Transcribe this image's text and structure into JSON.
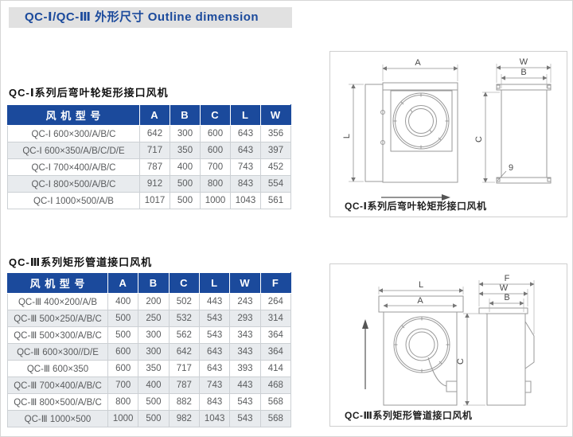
{
  "page": {
    "title": "QC-Ⅰ/QC-Ⅲ 外形尺寸 Outline dimension"
  },
  "colors": {
    "accent_blue": "#1b4a9c",
    "title_bar_bg": "#e1e1e1",
    "table_header_bg": "#1b4a9c",
    "alt_row_bg": "#e8ebee",
    "cell_text": "#5a5c5e"
  },
  "tables": [
    {
      "section_title": "QC-Ⅰ系列后弯叶轮矩形接口风机",
      "headers": [
        "风 机 型 号",
        "A",
        "B",
        "C",
        "L",
        "W"
      ],
      "rows": [
        [
          "QC-Ⅰ 600×300/A/B/C",
          "642",
          "300",
          "600",
          "643",
          "356"
        ],
        [
          "QC-Ⅰ 600×350/A/B/C/D/E",
          "717",
          "350",
          "600",
          "643",
          "397"
        ],
        [
          "QC-Ⅰ 700×400/A/B/C",
          "787",
          "400",
          "700",
          "743",
          "452"
        ],
        [
          "QC-Ⅰ 800×500/A/B/C",
          "912",
          "500",
          "800",
          "843",
          "554"
        ],
        [
          "QC-Ⅰ 1000×500/A/B",
          "1017",
          "500",
          "1000",
          "1043",
          "561"
        ]
      ]
    },
    {
      "section_title": "QC-Ⅲ系列矩形管道接口风机",
      "headers": [
        "风 机 型 号",
        "A",
        "B",
        "C",
        "L",
        "W",
        "F"
      ],
      "rows": [
        [
          "QC-Ⅲ 400×200/A/B",
          "400",
          "200",
          "502",
          "443",
          "243",
          "264"
        ],
        [
          "QC-Ⅲ 500×250/A/B/C",
          "500",
          "250",
          "532",
          "543",
          "293",
          "314"
        ],
        [
          "QC-Ⅲ 500×300/A/B/C",
          "500",
          "300",
          "562",
          "543",
          "343",
          "364"
        ],
        [
          "QC-Ⅲ 600×300//D/E",
          "600",
          "300",
          "642",
          "643",
          "343",
          "364"
        ],
        [
          "QC-Ⅲ 600×350",
          "600",
          "350",
          "717",
          "643",
          "393",
          "414"
        ],
        [
          "QC-Ⅲ 700×400/A/B/C",
          "700",
          "400",
          "787",
          "743",
          "443",
          "468"
        ],
        [
          "QC-Ⅲ 800×500/A/B/C",
          "800",
          "500",
          "882",
          "843",
          "543",
          "568"
        ],
        [
          "QC-Ⅲ 1000×500",
          "1000",
          "500",
          "982",
          "1043",
          "543",
          "568"
        ]
      ]
    }
  ],
  "diagrams": [
    {
      "caption": "QC-Ⅰ系列后弯叶轮矩形接口风机",
      "labels": {
        "A": "A",
        "B": "B",
        "C": "C",
        "L": "L",
        "W": "W",
        "hole": "9"
      }
    },
    {
      "caption": "QC-Ⅲ系列矩形管道接口风机",
      "labels": {
        "A": "A",
        "B": "B",
        "C": "C",
        "L": "L",
        "W": "W",
        "F": "F"
      }
    }
  ]
}
